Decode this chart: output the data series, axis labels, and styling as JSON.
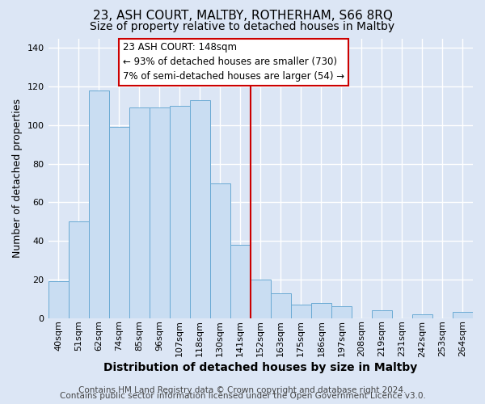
{
  "title": "23, ASH COURT, MALTBY, ROTHERHAM, S66 8RQ",
  "subtitle": "Size of property relative to detached houses in Maltby",
  "xlabel": "Distribution of detached houses by size in Maltby",
  "ylabel": "Number of detached properties",
  "footer_line1": "Contains HM Land Registry data © Crown copyright and database right 2024.",
  "footer_line2": "Contains public sector information licensed under the Open Government Licence v3.0.",
  "bin_labels": [
    "40sqm",
    "51sqm",
    "62sqm",
    "74sqm",
    "85sqm",
    "96sqm",
    "107sqm",
    "118sqm",
    "130sqm",
    "141sqm",
    "152sqm",
    "163sqm",
    "175sqm",
    "186sqm",
    "197sqm",
    "208sqm",
    "219sqm",
    "231sqm",
    "242sqm",
    "253sqm",
    "264sqm"
  ],
  "bar_heights": [
    19,
    50,
    118,
    99,
    109,
    109,
    110,
    113,
    70,
    38,
    20,
    13,
    7,
    8,
    6,
    0,
    4,
    0,
    2,
    0,
    3
  ],
  "bar_color": "#c9ddf2",
  "bar_edge_color": "#6aaad4",
  "vline_x_index": 10,
  "vline_color": "#cc0000",
  "annotation_title": "23 ASH COURT: 148sqm",
  "annotation_line1": "← 93% of detached houses are smaller (730)",
  "annotation_line2": "7% of semi-detached houses are larger (54) →",
  "annotation_box_color": "#ffffff",
  "annotation_box_edge_color": "#cc0000",
  "ylim": [
    0,
    145
  ],
  "background_color": "#dce6f5",
  "plot_background_color": "#dce6f5",
  "grid_color": "#ffffff",
  "title_fontsize": 11,
  "subtitle_fontsize": 10,
  "xlabel_fontsize": 10,
  "ylabel_fontsize": 9,
  "tick_fontsize": 8,
  "footer_fontsize": 7.5
}
